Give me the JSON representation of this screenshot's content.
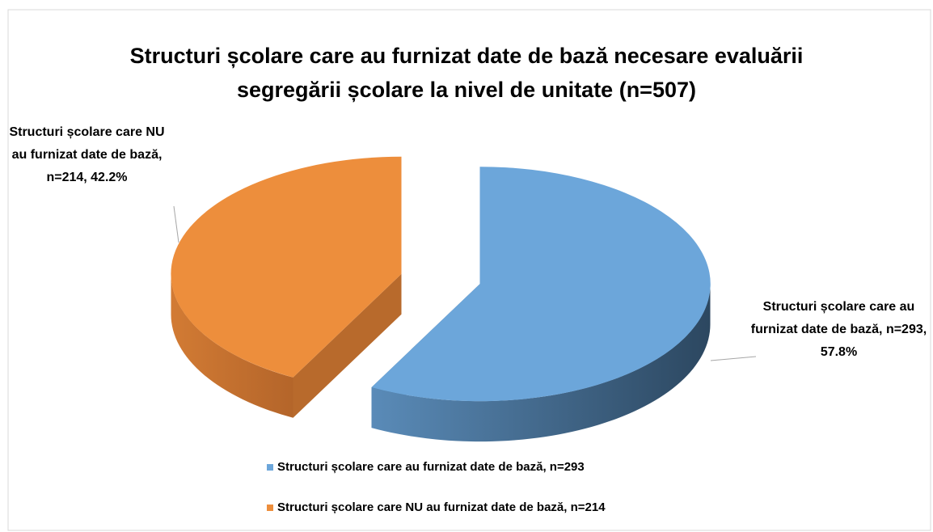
{
  "chart_data": {
    "type": "pie",
    "title": "Structuri școlare care au furnizat date de bază necesare evaluării segregării școlare la nivel de unitate (n=507)",
    "categories": [
      "Structuri școlare care au furnizat date de bază, n=293",
      "Structuri școlare care NU au furnizat date de bază, n=214"
    ],
    "values": [
      293,
      214
    ],
    "value_labels": [
      "Structuri școlare care au furnizat date de bază, n=293, 57.8%",
      "Structuri școlare care NU au furnizat date de bază, n=214, 42.2%"
    ],
    "colors": [
      "#6ca6da",
      "#ed8e3c"
    ],
    "legend": "bottom"
  }
}
